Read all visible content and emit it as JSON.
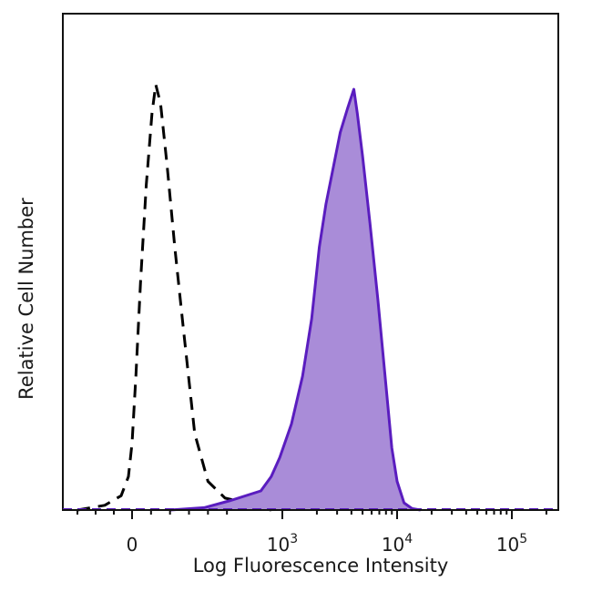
{
  "chart_data": {
    "type": "area",
    "title": "",
    "xlabel": "Log Fluorescence Intensity",
    "ylabel": "Relative Cell Number",
    "x_scale": "biexponential",
    "x_ticks": [
      {
        "value": 0,
        "base": "0",
        "exp": ""
      },
      {
        "value": 1000,
        "base": "10",
        "exp": "3"
      },
      {
        "value": 10000,
        "base": "10",
        "exp": "4"
      },
      {
        "value": 100000,
        "base": "10",
        "exp": "5"
      }
    ],
    "ylim": [
      0,
      100
    ],
    "grid": false,
    "legend": "none",
    "series": [
      {
        "style": "dashed-outline",
        "color": "#000000",
        "points": [
          [
            -300,
            0
          ],
          [
            -150,
            1
          ],
          [
            -60,
            3
          ],
          [
            -20,
            7
          ],
          [
            0,
            14
          ],
          [
            20,
            28
          ],
          [
            45,
            48
          ],
          [
            75,
            68
          ],
          [
            105,
            83
          ],
          [
            125,
            89
          ],
          [
            150,
            85
          ],
          [
            185,
            72
          ],
          [
            225,
            55
          ],
          [
            270,
            38
          ],
          [
            330,
            16
          ],
          [
            400,
            6
          ],
          [
            490,
            2.5
          ],
          [
            600,
            1
          ],
          [
            700,
            0.3
          ],
          [
            800,
            0
          ]
        ]
      },
      {
        "style": "filled",
        "color": "#a98cd8",
        "edge_color": "#5a1dbf",
        "points": [
          [
            200,
            0
          ],
          [
            380,
            0.5
          ],
          [
            520,
            2
          ],
          [
            650,
            4
          ],
          [
            800,
            7
          ],
          [
            950,
            11
          ],
          [
            1200,
            18
          ],
          [
            1500,
            28
          ],
          [
            1800,
            40
          ],
          [
            2100,
            55
          ],
          [
            2400,
            64
          ],
          [
            2800,
            72
          ],
          [
            3200,
            79
          ],
          [
            3700,
            84
          ],
          [
            4200,
            88
          ],
          [
            4500,
            83
          ],
          [
            5000,
            74
          ],
          [
            5800,
            60
          ],
          [
            6800,
            44
          ],
          [
            8000,
            26
          ],
          [
            9000,
            13
          ],
          [
            10000,
            6
          ],
          [
            11500,
            1.5
          ],
          [
            13500,
            0.3
          ],
          [
            16000,
            0
          ]
        ]
      }
    ]
  }
}
